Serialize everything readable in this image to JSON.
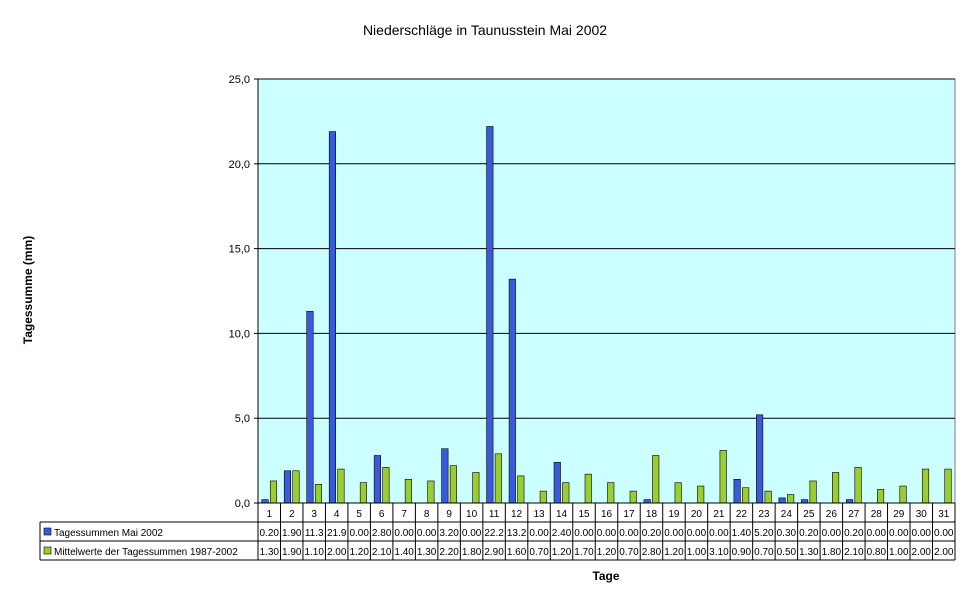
{
  "chart_data": {
    "type": "bar",
    "title": "Niederschläge in Taunusstein Mai  2002",
    "xlabel": "Tage",
    "ylabel": "Tagessumme (mm)",
    "ylim": [
      0,
      25
    ],
    "yticks": [
      "0,0",
      "5,0",
      "10,0",
      "15,0",
      "20,0",
      "25,0"
    ],
    "categories": [
      "1",
      "2",
      "3",
      "4",
      "5",
      "6",
      "7",
      "8",
      "9",
      "10",
      "11",
      "12",
      "13",
      "14",
      "15",
      "16",
      "17",
      "18",
      "19",
      "20",
      "21",
      "22",
      "23",
      "24",
      "25",
      "26",
      "27",
      "28",
      "29",
      "30",
      "31"
    ],
    "series": [
      {
        "name": "Tagessummen Mai 2002",
        "color": "#3a5bd9",
        "values": [
          0.2,
          1.9,
          11.3,
          21.9,
          0.0,
          2.8,
          0.0,
          0.0,
          3.2,
          0.0,
          22.2,
          13.2,
          0.0,
          2.4,
          0.0,
          0.0,
          0.0,
          0.2,
          0.0,
          0.0,
          0.0,
          1.4,
          5.2,
          0.3,
          0.2,
          0.0,
          0.2,
          0.0,
          0.0,
          0.0,
          0.0
        ],
        "labels": [
          "0.20",
          "1.90",
          "11.3",
          "21.9",
          "0.00",
          "2.80",
          "0.00",
          "0.00",
          "3.20",
          "0.00",
          "22.2",
          "13.2",
          "0.00",
          "2.40",
          "0.00",
          "0.00",
          "0.00",
          "0.20",
          "0.00",
          "0.00",
          "0.00",
          "1.40",
          "5.20",
          "0.30",
          "0.20",
          "0.00",
          "0.20",
          "0.00",
          "0.00",
          "0.00",
          "0.00"
        ]
      },
      {
        "name": "Mittelwerte der Tagessummen 1987-2002",
        "color": "#9acd32",
        "values": [
          1.3,
          1.9,
          1.1,
          2.0,
          1.2,
          2.1,
          1.4,
          1.3,
          2.2,
          1.8,
          2.9,
          1.6,
          0.7,
          1.2,
          1.7,
          1.2,
          0.7,
          2.8,
          1.2,
          1.0,
          3.1,
          0.9,
          0.7,
          0.5,
          1.3,
          1.8,
          2.1,
          0.8,
          1.0,
          2.0,
          2.0
        ],
        "labels": [
          "1.30",
          "1.90",
          "1.10",
          "2.00",
          "1.20",
          "2.10",
          "1.40",
          "1.30",
          "2.20",
          "1.80",
          "2.90",
          "1.60",
          "0.70",
          "1.20",
          "1.70",
          "1.20",
          "0.70",
          "2.80",
          "1.20",
          "1.00",
          "3.10",
          "0.90",
          "0.70",
          "0.50",
          "1.30",
          "1.80",
          "2.10",
          "0.80",
          "1.00",
          "2.00",
          "2.00"
        ]
      }
    ],
    "plot_background": "#ccffff",
    "grid": true,
    "legend": "data-table"
  }
}
